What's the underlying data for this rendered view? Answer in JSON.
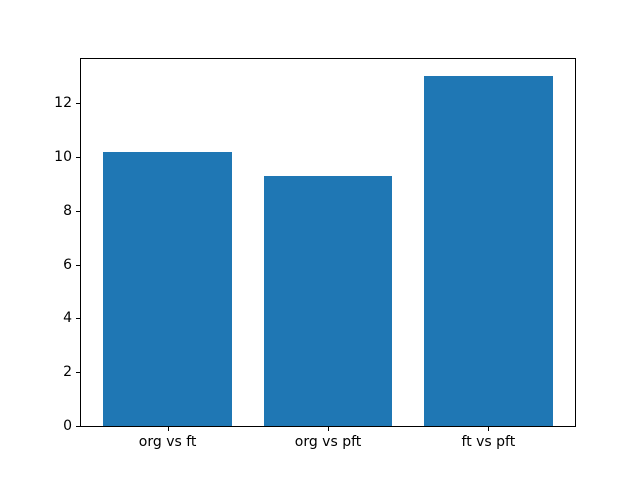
{
  "chart_data": {
    "type": "bar",
    "title": "",
    "xlabel": "",
    "ylabel": "",
    "categories": [
      "org vs ft",
      "org vs pft",
      "ft vs pft"
    ],
    "values": [
      10.2,
      9.3,
      13.0
    ],
    "series": [
      {
        "name": "",
        "values": [
          10.2,
          9.3,
          13.0
        ]
      }
    ],
    "ylim": [
      0,
      13.65
    ],
    "yticks": [
      0,
      2,
      4,
      6,
      8,
      10,
      12
    ],
    "xtick_labels": [
      "org vs ft",
      "org vs pft",
      "ft vs pft"
    ],
    "grid": false,
    "legend": null,
    "bar_color": "#1f77b4",
    "axis_color": "#000000",
    "text_color": "#000000",
    "background_color": "#ffffff"
  }
}
